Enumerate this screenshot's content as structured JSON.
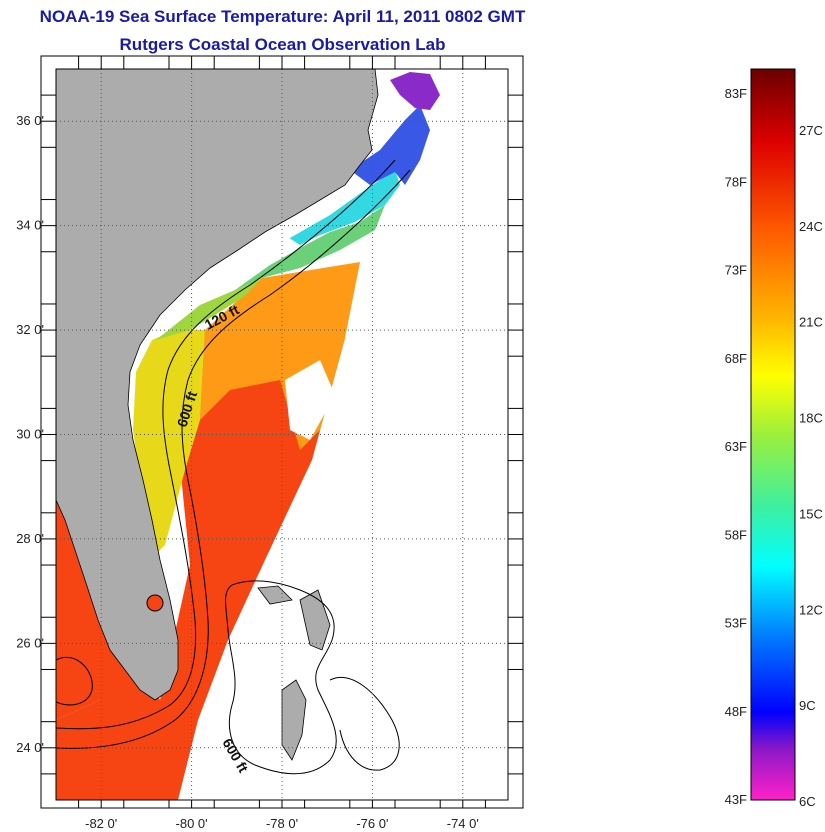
{
  "title_line1": "NOAA-19 Sea Surface Temperature:  April 11, 2011 0802 GMT",
  "title_line2": "Rutgers Coastal Ocean Observation Lab",
  "colors": {
    "title": "#1a1aa8",
    "land": "#acacac",
    "cloud_missing": "#ffffff",
    "gulf_stream": "#f64412"
  },
  "map": {
    "lon_range": [
      -83,
      -73
    ],
    "lat_range": [
      23,
      37
    ],
    "lon_ticks": [
      {
        "value": -82,
        "label": "-82 0'"
      },
      {
        "value": -80,
        "label": "-80 0'"
      },
      {
        "value": -78,
        "label": "-78 0'"
      },
      {
        "value": -76,
        "label": "-76 0'"
      },
      {
        "value": -74,
        "label": "-74 0'"
      }
    ],
    "lat_ticks": [
      {
        "value": 24,
        "label": "24 0'"
      },
      {
        "value": 26,
        "label": "26 0'"
      },
      {
        "value": 28,
        "label": "28 0'"
      },
      {
        "value": 30,
        "label": "30 0'"
      },
      {
        "value": 32,
        "label": "32 0'"
      },
      {
        "value": 34,
        "label": "34 0'"
      },
      {
        "value": 36,
        "label": "36 0'"
      }
    ],
    "contour_labels": [
      "120 ft",
      "600 ft",
      "600 ft"
    ]
  },
  "colorbar": {
    "fahrenheit_labels": [
      "83F",
      "78F",
      "73F",
      "68F",
      "63F",
      "58F",
      "53F",
      "48F",
      "43F"
    ],
    "celsius_labels": [
      "27C",
      "24C",
      "21C",
      "18C",
      "15C",
      "12C",
      "9C",
      "6C"
    ],
    "color_stops": [
      {
        "t": 0.0,
        "color": "#6b0000"
      },
      {
        "t": 0.1,
        "color": "#dd0000"
      },
      {
        "t": 0.22,
        "color": "#ff5a00"
      },
      {
        "t": 0.34,
        "color": "#ffb400"
      },
      {
        "t": 0.42,
        "color": "#ffff00"
      },
      {
        "t": 0.5,
        "color": "#9cf03a"
      },
      {
        "t": 0.6,
        "color": "#3cf0a0"
      },
      {
        "t": 0.68,
        "color": "#00ffff"
      },
      {
        "t": 0.78,
        "color": "#0078ff"
      },
      {
        "t": 0.88,
        "color": "#0000ff"
      },
      {
        "t": 0.93,
        "color": "#8a18c8"
      },
      {
        "t": 1.0,
        "color": "#ff22c8"
      }
    ]
  }
}
